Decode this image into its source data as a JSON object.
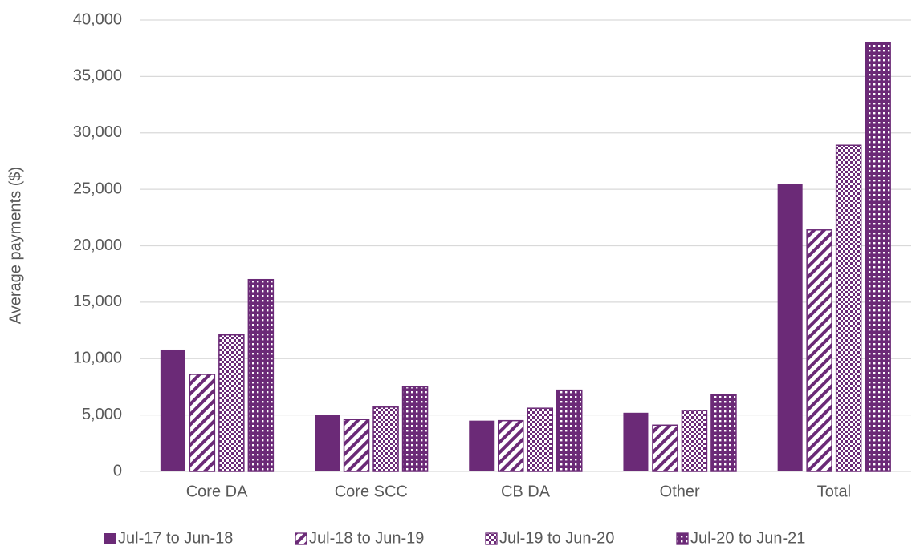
{
  "chart_data": {
    "type": "bar",
    "y_label": "Average payments ($)",
    "categories": [
      "Core DA",
      "Core SCC",
      "CB DA",
      "Other",
      "Total"
    ],
    "series": [
      {
        "name": "Jul-17 to Jun-18",
        "color": "#6b2a77",
        "pattern": "solid",
        "values": [
          10800,
          5000,
          4500,
          5200,
          25500
        ]
      },
      {
        "name": "Jul-18 to Jun-19",
        "color": "#6b2a77",
        "pattern": "diagonal",
        "values": [
          8600,
          4600,
          4500,
          4100,
          21400
        ]
      },
      {
        "name": "Jul-19 to Jun-20",
        "color": "#6b2a77",
        "pattern": "checker",
        "values": [
          12100,
          5700,
          5600,
          5400,
          28900
        ]
      },
      {
        "name": "Jul-20 to Jun-21",
        "color": "#6b2a77",
        "pattern": "dots",
        "values": [
          17000,
          7500,
          7200,
          6800,
          38000
        ]
      }
    ],
    "ylim": [
      0,
      40000
    ],
    "yticks": [
      0,
      {
        "value": 5000,
        "label": "5,000"
      },
      {
        "value": 10000,
        "label": "10,000"
      },
      {
        "value": 15000,
        "label": "15,000"
      },
      {
        "value": 20000,
        "label": "20,000"
      },
      {
        "value": 25000,
        "label": "25,000"
      },
      {
        "value": 30000,
        "label": "30,000"
      },
      {
        "value": 35000,
        "label": "35,000"
      },
      {
        "value": 40000,
        "label": "40,000"
      }
    ],
    "grid": true,
    "legend": "bottom"
  }
}
